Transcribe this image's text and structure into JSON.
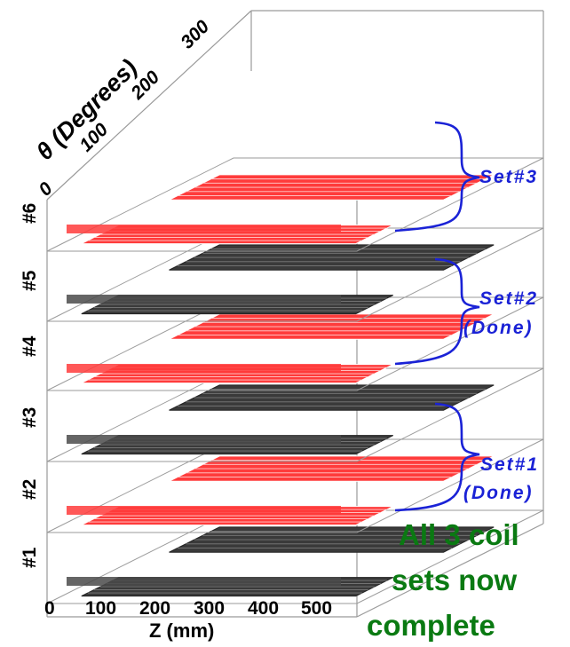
{
  "axes": {
    "z_label": "Z (mm)",
    "z_ticks": [
      "0",
      "100",
      "200",
      "300",
      "400",
      "500"
    ],
    "theta_label": "θ (Degrees)",
    "theta_ticks": [
      "0",
      "100",
      "200",
      "300"
    ]
  },
  "layers": [
    {
      "label": "#1",
      "color": "#3a3a3a"
    },
    {
      "label": "#2",
      "color": "#ff3b3b"
    },
    {
      "label": "#3",
      "color": "#3a3a3a"
    },
    {
      "label": "#4",
      "color": "#ff3b3b"
    },
    {
      "label": "#5",
      "color": "#3a3a3a"
    },
    {
      "label": "#6",
      "color": "#ff3b3b"
    }
  ],
  "sets": [
    {
      "name": "Set#1",
      "status": "(Done)"
    },
    {
      "name": "Set#2",
      "status": "(Done)"
    },
    {
      "name": "Set#3",
      "status": ""
    }
  ],
  "note": {
    "line1": "All 3 coil",
    "line2": "sets now",
    "line3": "complete"
  },
  "colors": {
    "red_coil": "#ff3b3b",
    "black_coil": "#3a3a3a",
    "set_brace": "#1a22d6",
    "note_text": "#0a7a12"
  }
}
